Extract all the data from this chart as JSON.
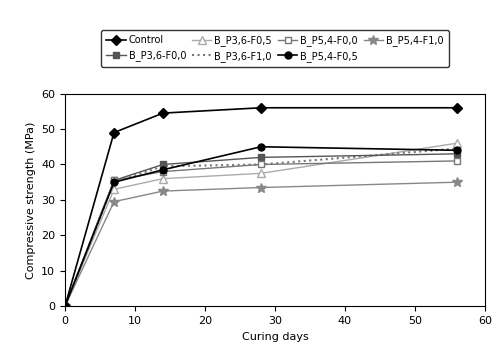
{
  "x_days": [
    0,
    7,
    14,
    28,
    56
  ],
  "series": [
    {
      "label": "Control",
      "values": [
        0,
        49,
        54.5,
        56,
        56
      ],
      "color": "#000000",
      "linestyle": "-",
      "marker": "D",
      "markersize": 5,
      "markerfacecolor": "#000000",
      "markeredgecolor": "#000000",
      "linewidth": 1.2,
      "zorder": 5
    },
    {
      "label": "B_P3,6-F0,0",
      "values": [
        0,
        35.5,
        40,
        42,
        43
      ],
      "color": "#555555",
      "linestyle": "-",
      "marker": "s",
      "markersize": 5,
      "markerfacecolor": "#555555",
      "markeredgecolor": "#555555",
      "linewidth": 1.0,
      "zorder": 4
    },
    {
      "label": "B_P3,6-F0,5",
      "values": [
        0,
        33,
        36,
        37.5,
        46
      ],
      "color": "#aaaaaa",
      "linestyle": "-",
      "marker": "^",
      "markersize": 6,
      "markerfacecolor": "#ffffff",
      "markeredgecolor": "#aaaaaa",
      "linewidth": 1.0,
      "zorder": 3
    },
    {
      "label": "B_P3,6-F1,0",
      "values": [
        0,
        35,
        39.5,
        40,
        44.5
      ],
      "color": "#777777",
      "linestyle": ":",
      "marker": "None",
      "markersize": 0,
      "markerfacecolor": "#777777",
      "markeredgecolor": "#777777",
      "linewidth": 1.5,
      "zorder": 3
    },
    {
      "label": "B_P5,4-F0,0",
      "values": [
        0,
        35.5,
        38,
        40,
        41
      ],
      "color": "#777777",
      "linestyle": "-",
      "marker": "s",
      "markersize": 5,
      "markerfacecolor": "#ffffff",
      "markeredgecolor": "#777777",
      "linewidth": 1.0,
      "zorder": 4
    },
    {
      "label": "B_P5,4-F0,5",
      "values": [
        0,
        35,
        38.5,
        45,
        44
      ],
      "color": "#000000",
      "linestyle": "-",
      "marker": "o",
      "markersize": 5,
      "markerfacecolor": "#000000",
      "markeredgecolor": "#000000",
      "linewidth": 1.2,
      "zorder": 5
    },
    {
      "label": "B_P5,4-F1,0",
      "values": [
        0,
        29.5,
        32.5,
        33.5,
        35
      ],
      "color": "#888888",
      "linestyle": "-",
      "marker": "*",
      "markersize": 7,
      "markerfacecolor": "#888888",
      "markeredgecolor": "#888888",
      "linewidth": 1.0,
      "zorder": 4
    }
  ],
  "xlabel": "Curing days",
  "ylabel": "Compressive strength (MPa)",
  "xlim": [
    0,
    60
  ],
  "ylim": [
    0,
    60
  ],
  "xticks": [
    0,
    10,
    20,
    30,
    40,
    50,
    60
  ],
  "yticks": [
    0,
    10,
    20,
    30,
    40,
    50,
    60
  ],
  "figsize": [
    5.0,
    3.48
  ],
  "dpi": 100,
  "legend_ncol": 4,
  "legend_fontsize": 7.0
}
